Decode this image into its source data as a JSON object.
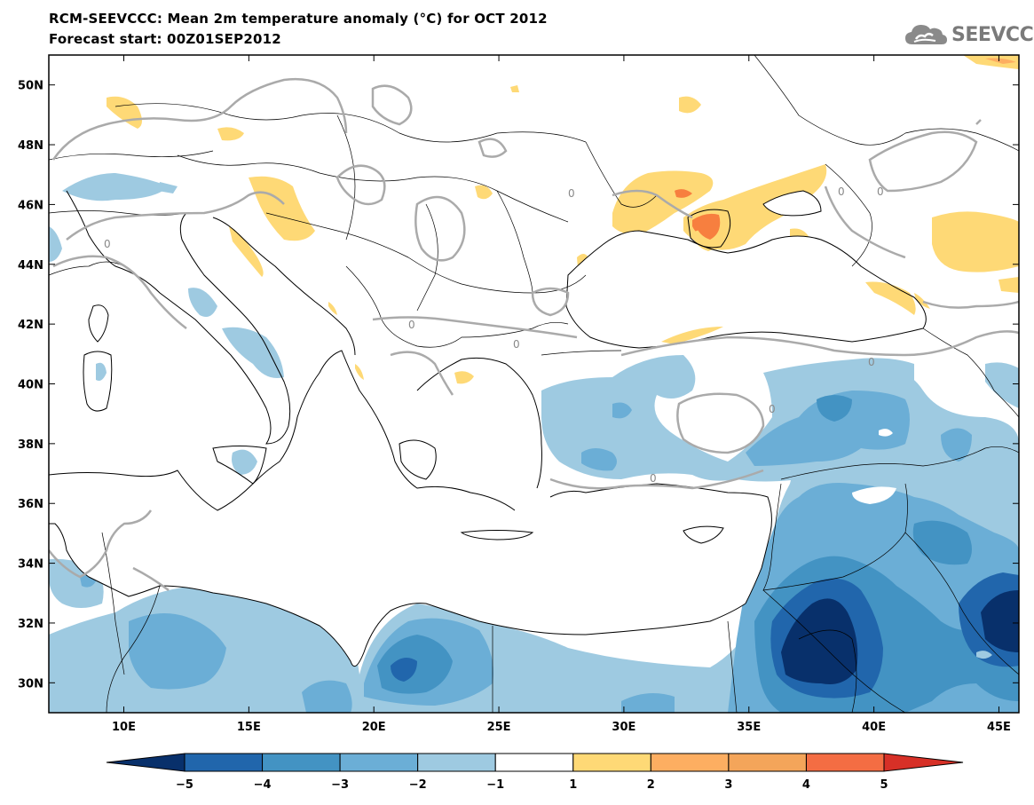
{
  "header": {
    "title": "RCM-SEEVCCC: Mean 2m temperature anomaly (°C) for OCT 2012",
    "subtitle": "Forecast start: 00Z01SEP2012",
    "logo_text": "SEEVCCC"
  },
  "map_data": {
    "variable": "Mean 2m temperature anomaly",
    "units": "°C",
    "lon_range": [
      7,
      45.8
    ],
    "lat_range": [
      29,
      51
    ],
    "lon_ticks": [
      10,
      15,
      20,
      25,
      30,
      35,
      40,
      45
    ],
    "lon_tick_labels": [
      "10E",
      "15E",
      "20E",
      "25E",
      "30E",
      "35E",
      "40E",
      "45E"
    ],
    "lat_ticks": [
      30,
      32,
      34,
      36,
      38,
      40,
      42,
      44,
      46,
      48,
      50
    ],
    "lat_tick_labels": [
      "30N",
      "32N",
      "34N",
      "36N",
      "38N",
      "40N",
      "42N",
      "44N",
      "46N",
      "48N",
      "50N"
    ],
    "contour_label": "0"
  },
  "colorbar": {
    "levels": [
      "-5",
      "-4",
      "-3",
      "-2",
      "-1",
      "1",
      "2",
      "3",
      "4",
      "5"
    ],
    "colors": [
      "#08306b",
      "#2166ac",
      "#4393c3",
      "#6baed6",
      "#9ecae1",
      "#ffffff",
      "#fed976",
      "#fdae61",
      "#f4a55a",
      "#f46d43",
      "#d73027"
    ],
    "extend": "both"
  },
  "colors": {
    "blue_1": "#9ecae1",
    "blue_2": "#6baed6",
    "blue_3": "#4393c3",
    "blue_4": "#2166ac",
    "blue_5": "#08306b",
    "warm_1": "#fed976",
    "warm_2": "#fdae61",
    "warm_3": "#f77f3f",
    "zero_contour": "#aaaaaa"
  }
}
